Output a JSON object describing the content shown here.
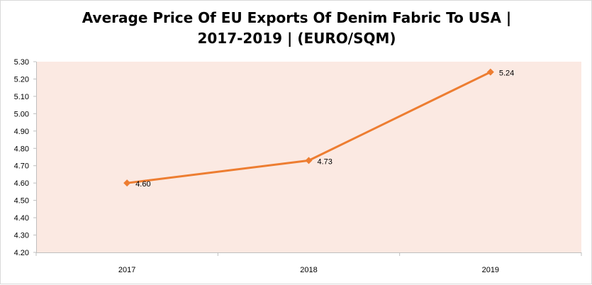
{
  "chart_data": {
    "type": "line",
    "title_line1": "Average Price Of EU Exports Of Denim Fabric To USA |",
    "title_line2": "2017-2019  | (EURO/SQM)",
    "categories": [
      "2017",
      "2018",
      "2019"
    ],
    "series": [
      {
        "values": [
          4.6,
          4.73,
          5.24
        ],
        "labels": [
          "4.60",
          "4.73",
          "5.24"
        ],
        "color": "#ed7d31"
      }
    ],
    "ylim": [
      4.2,
      5.3
    ],
    "yticks": [
      "4.20",
      "4.30",
      "4.40",
      "4.50",
      "4.60",
      "4.70",
      "4.80",
      "4.90",
      "5.00",
      "5.10",
      "5.20",
      "5.30"
    ],
    "plot_background": "#fbe9e2",
    "grid": false,
    "legend": "none"
  }
}
